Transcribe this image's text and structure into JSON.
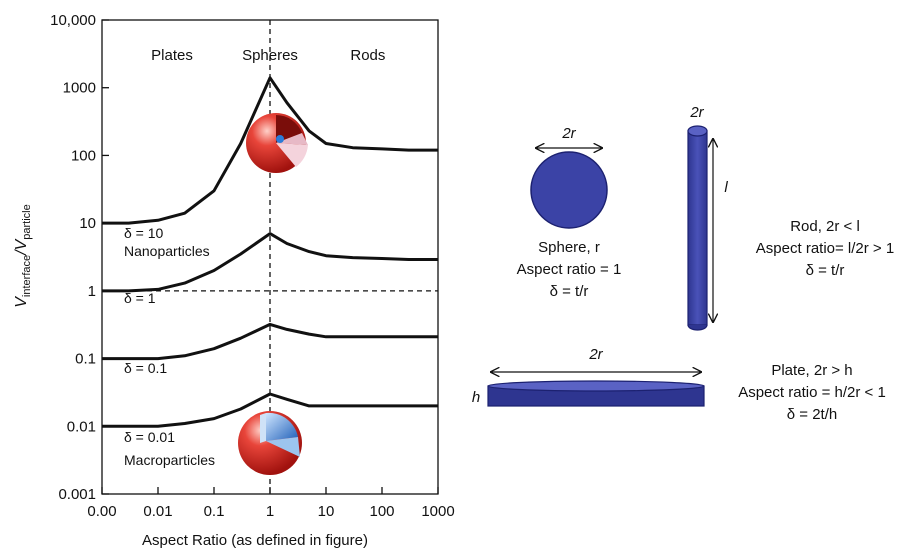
{
  "chart_data": {
    "type": "line",
    "title": "",
    "xlabel": "Aspect Ratio (as defined in figure)",
    "ylabel": "V_interface/V_particle",
    "ylabel_parts": {
      "main": "V",
      "sub1": "interface",
      "sep": "/V",
      "sub2": "particle"
    },
    "x_scale": "log",
    "y_scale": "log",
    "x_ticks": [
      "0.00",
      "0.01",
      "0.1",
      "1",
      "10",
      "100",
      "1000"
    ],
    "y_ticks": [
      "10,000",
      "1000",
      "100",
      "10",
      "1",
      "0.1",
      "0.01",
      "0.001"
    ],
    "ylim": [
      0.001,
      10000
    ],
    "regions": [
      "Plates",
      "Spheres",
      "Rods"
    ],
    "reference_lines": {
      "vertical_x": 1,
      "horizontal_y": 1
    },
    "series": [
      {
        "label": "δ = 10",
        "note": "Nanoparticles",
        "points": [
          [
            0.001,
            10
          ],
          [
            0.003,
            10
          ],
          [
            0.01,
            11
          ],
          [
            0.03,
            14
          ],
          [
            0.1,
            30
          ],
          [
            0.3,
            150
          ],
          [
            1,
            1400
          ],
          [
            2,
            600
          ],
          [
            5,
            230
          ],
          [
            10,
            150
          ],
          [
            30,
            130
          ],
          [
            100,
            125
          ],
          [
            300,
            120
          ],
          [
            1000,
            120
          ]
        ]
      },
      {
        "label": "δ = 1",
        "note": "",
        "points": [
          [
            0.001,
            1
          ],
          [
            0.003,
            1
          ],
          [
            0.01,
            1.05
          ],
          [
            0.03,
            1.3
          ],
          [
            0.1,
            2
          ],
          [
            0.3,
            3.5
          ],
          [
            1,
            7
          ],
          [
            2,
            5
          ],
          [
            5,
            3.8
          ],
          [
            10,
            3.3
          ],
          [
            30,
            3.1
          ],
          [
            100,
            3.0
          ],
          [
            300,
            2.9
          ],
          [
            1000,
            2.9
          ]
        ]
      },
      {
        "label": "δ = 0.1",
        "note": "",
        "points": [
          [
            0.001,
            0.1
          ],
          [
            0.003,
            0.1
          ],
          [
            0.01,
            0.1
          ],
          [
            0.03,
            0.11
          ],
          [
            0.1,
            0.14
          ],
          [
            0.3,
            0.2
          ],
          [
            1,
            0.32
          ],
          [
            2,
            0.27
          ],
          [
            5,
            0.23
          ],
          [
            10,
            0.21
          ],
          [
            30,
            0.21
          ],
          [
            100,
            0.21
          ],
          [
            300,
            0.21
          ],
          [
            1000,
            0.21
          ]
        ]
      },
      {
        "label": "δ = 0.01",
        "note": "Macroparticles",
        "points": [
          [
            0.001,
            0.01
          ],
          [
            0.003,
            0.01
          ],
          [
            0.01,
            0.01
          ],
          [
            0.03,
            0.011
          ],
          [
            0.1,
            0.013
          ],
          [
            0.3,
            0.018
          ],
          [
            1,
            0.03
          ],
          [
            2,
            0.025
          ],
          [
            5,
            0.02
          ],
          [
            10,
            0.02
          ],
          [
            30,
            0.02
          ],
          [
            100,
            0.02
          ],
          [
            300,
            0.02
          ],
          [
            1000,
            0.02
          ]
        ]
      }
    ]
  },
  "shapes": {
    "color": "#3b43a6",
    "sphere": {
      "dimension": "2r",
      "caption": [
        "Sphere, r",
        "Aspect ratio = 1",
        "δ = t/r"
      ]
    },
    "rod": {
      "top": "2r",
      "length": "l",
      "caption": [
        "Rod, 2r < l",
        "Aspect ratio= l/2r > 1",
        "δ = t/r"
      ]
    },
    "plate": {
      "width": "2r",
      "height": "h",
      "caption": [
        "Plate, 2r > h",
        "Aspect ratio = h/2r < 1",
        "δ = 2t/h"
      ]
    }
  }
}
